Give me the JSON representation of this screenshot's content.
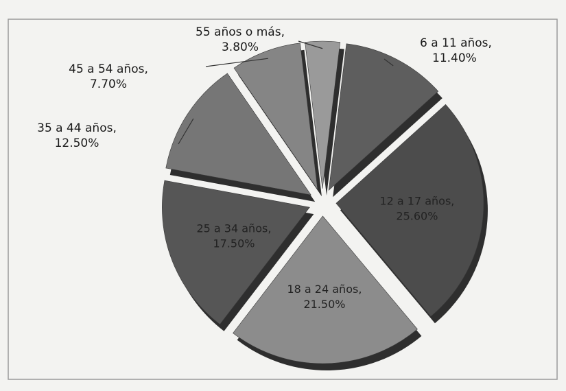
{
  "chart_data": {
    "type": "pie",
    "categories": [
      "6 a 11 años",
      "12 a 17 años",
      "18 a 24 años",
      "25 a 34 años",
      "35 a 44 años",
      "45 a 54 años",
      "55 años o más"
    ],
    "values": [
      11.4,
      25.6,
      21.5,
      17.5,
      12.5,
      7.7,
      3.8
    ],
    "value_labels": [
      "11.40%",
      "25.60%",
      "21.50%",
      "17.50%",
      "12.50%",
      "7.70%",
      "3.80%"
    ],
    "label_separator": ",",
    "colors": [
      "#5e5e5e",
      "#4c4c4c",
      "#8c8c8c",
      "#565656",
      "#767676",
      "#858585",
      "#9a9a9a"
    ]
  }
}
